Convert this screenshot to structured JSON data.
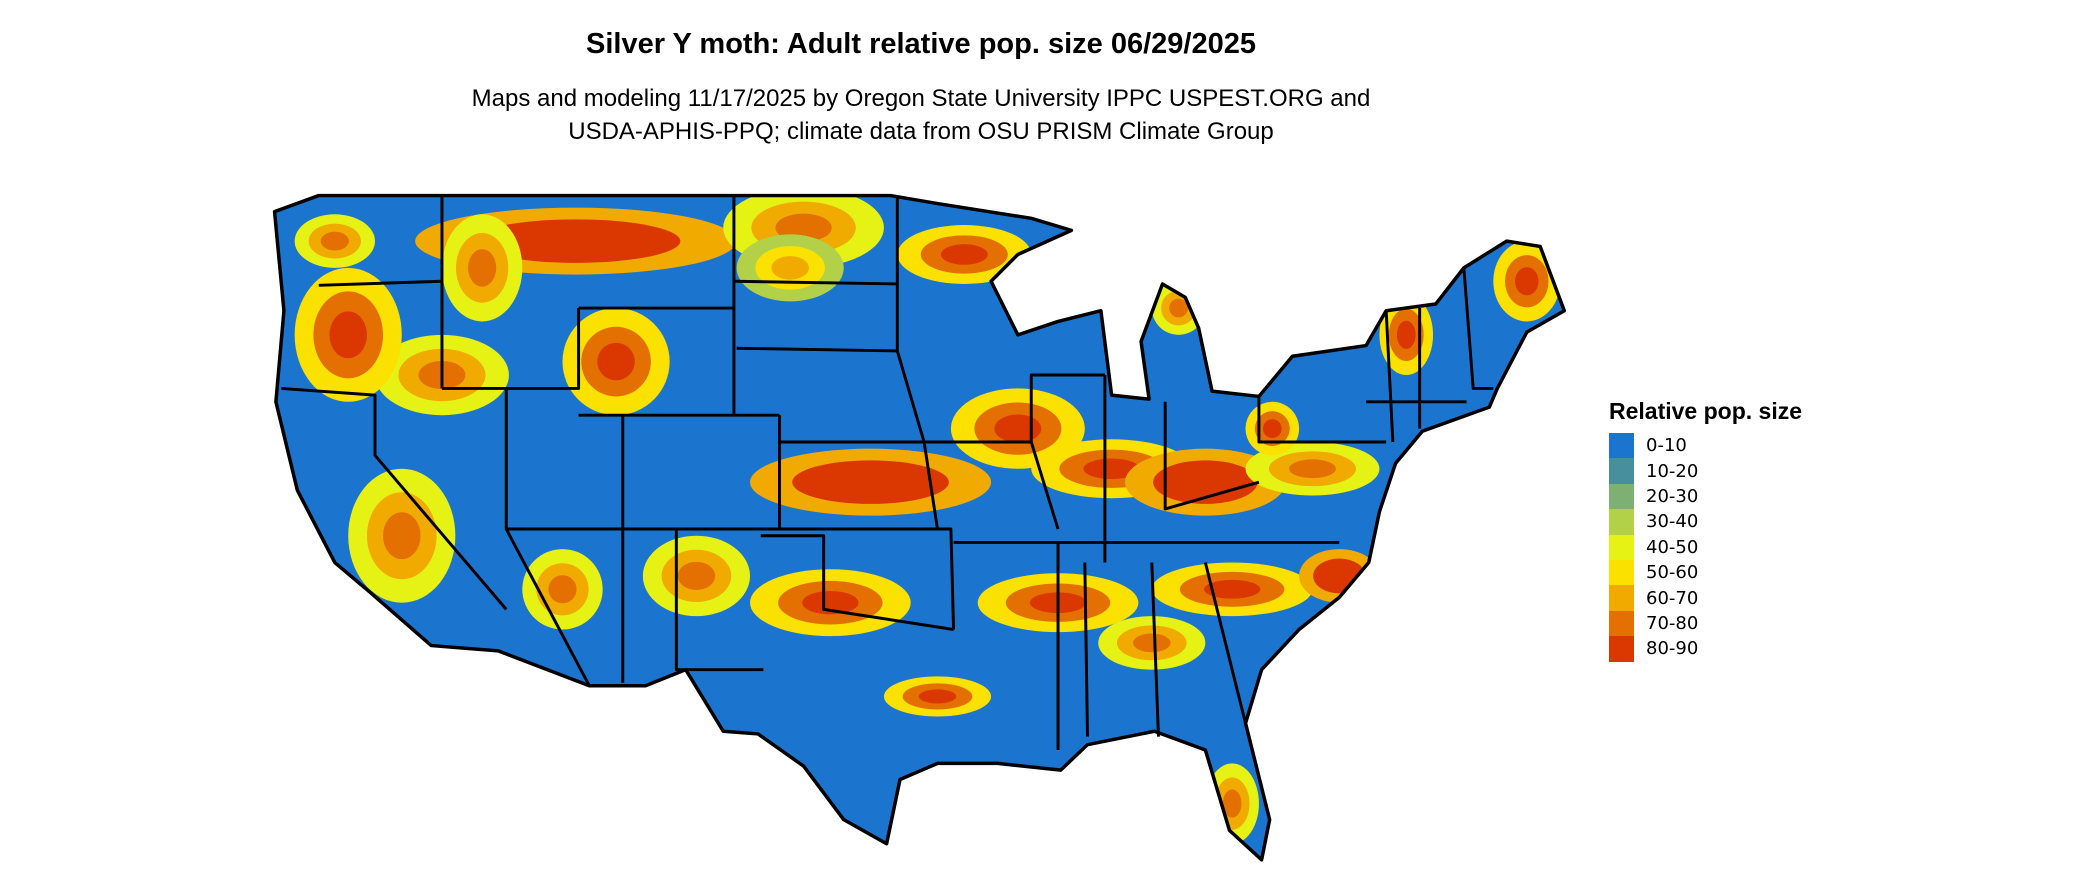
{
  "title": "Silver Y moth: Adult relative pop. size 06/29/2025",
  "subtitle": [
    "Maps and modeling 11/17/2025 by Oregon State University IPPC USPEST.ORG and",
    "USDA-APHIS-PPQ; climate data from OSU PRISM Climate Group"
  ],
  "legend": {
    "title": "Relative pop. size",
    "items": [
      {
        "label": "0-10",
        "color": "#1b75cf"
      },
      {
        "label": "10-20",
        "color": "#488f9e"
      },
      {
        "label": "20-30",
        "color": "#7fb073"
      },
      {
        "label": "30-40",
        "color": "#b3d148"
      },
      {
        "label": "40-50",
        "color": "#e6f214"
      },
      {
        "label": "50-60",
        "color": "#fae100"
      },
      {
        "label": "60-70",
        "color": "#f0aa00"
      },
      {
        "label": "70-80",
        "color": "#e37000"
      },
      {
        "label": "80-90",
        "color": "#db3700"
      }
    ]
  }
}
